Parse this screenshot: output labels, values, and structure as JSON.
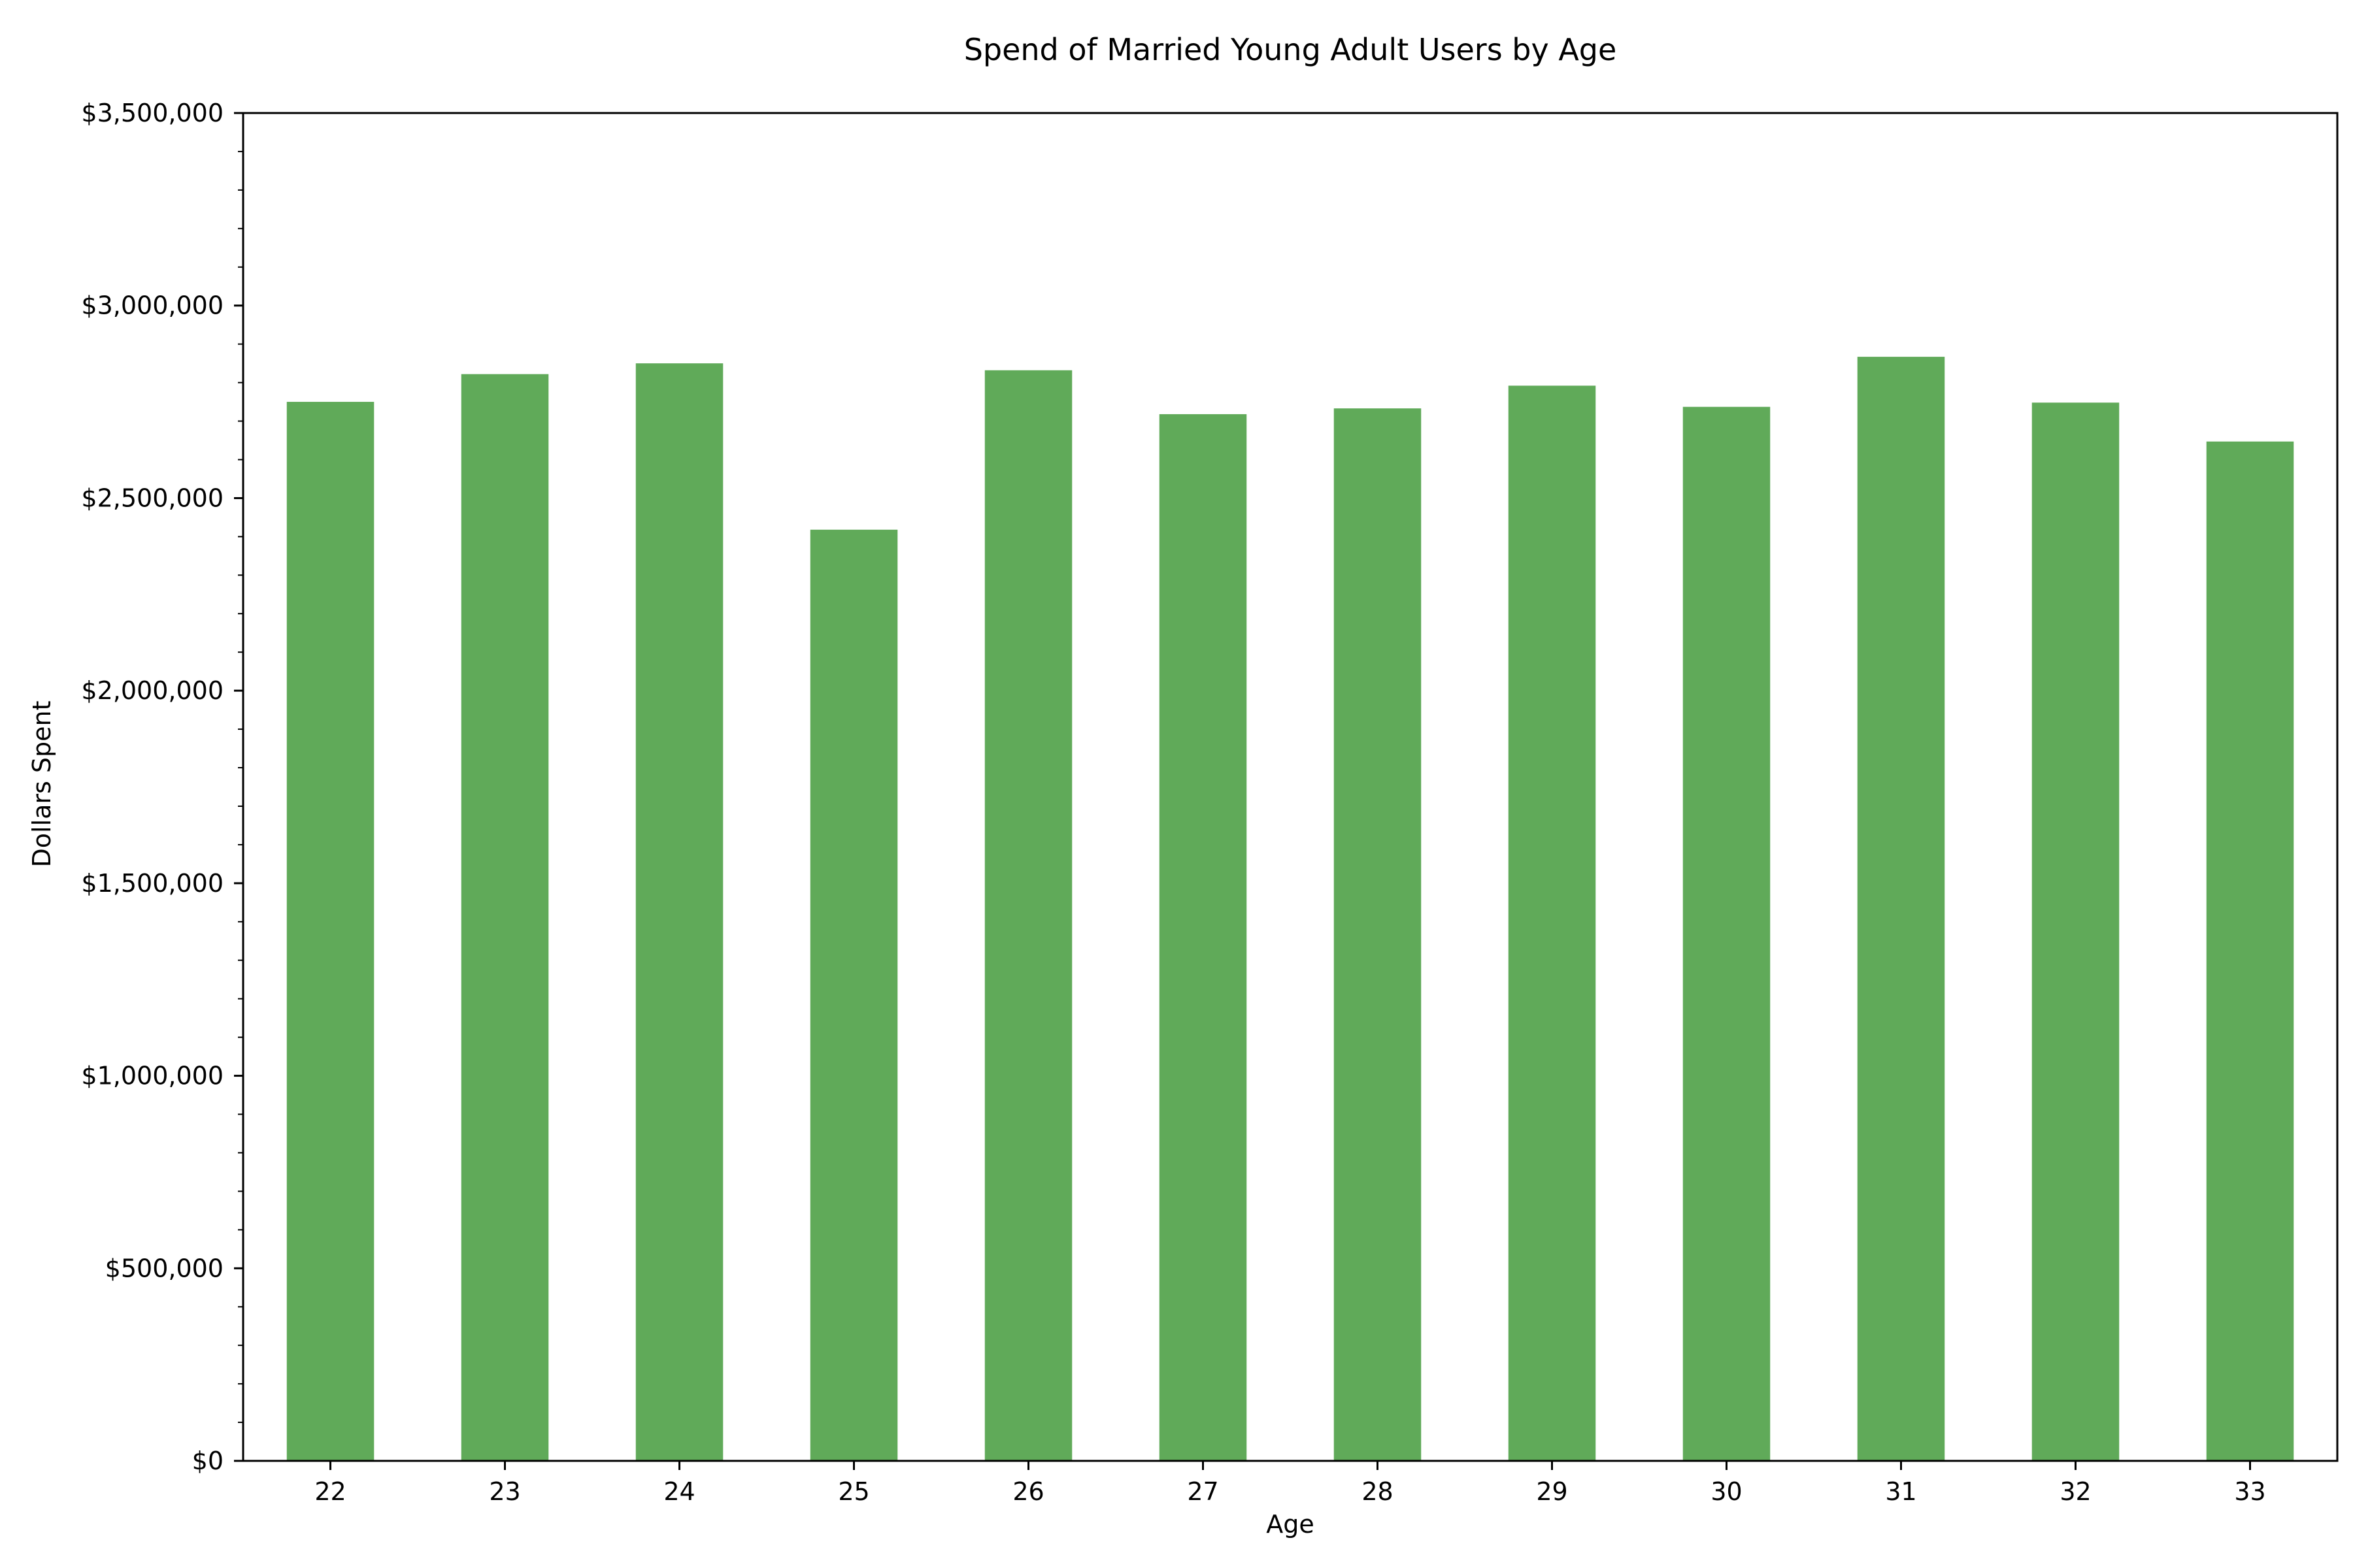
{
  "chart_data": {
    "type": "bar",
    "title": "Spend of Married Young Adult Users by Age",
    "xlabel": "Age",
    "ylabel": "Dollars Spent",
    "categories": [
      "22",
      "23",
      "24",
      "25",
      "26",
      "27",
      "28",
      "29",
      "30",
      "31",
      "32",
      "33"
    ],
    "values": [
      2750000,
      2822000,
      2850000,
      2418000,
      2832000,
      2718000,
      2733000,
      2792000,
      2737000,
      2867000,
      2748000,
      2647000
    ],
    "ylim": [
      0,
      3500000
    ],
    "yticks": [
      0,
      500000,
      1000000,
      1500000,
      2000000,
      2500000,
      3000000,
      3500000
    ],
    "ytick_labels": [
      "$0",
      "$500,000",
      "$1,000,000",
      "$1,500,000",
      "$2,000,000",
      "$2,500,000",
      "$3,000,000",
      "$3,500,000"
    ],
    "minor_ytick_step": 100000,
    "bar_color": "#60aa59",
    "grid": false,
    "legend": "none"
  }
}
